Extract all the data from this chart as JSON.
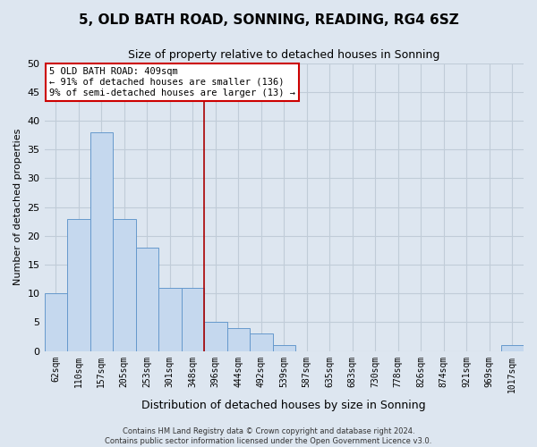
{
  "title": "5, OLD BATH ROAD, SONNING, READING, RG4 6SZ",
  "subtitle": "Size of property relative to detached houses in Sonning",
  "xlabel": "Distribution of detached houses by size in Sonning",
  "ylabel": "Number of detached properties",
  "bins": [
    "62sqm",
    "110sqm",
    "157sqm",
    "205sqm",
    "253sqm",
    "301sqm",
    "348sqm",
    "396sqm",
    "444sqm",
    "492sqm",
    "539sqm",
    "587sqm",
    "635sqm",
    "683sqm",
    "730sqm",
    "778sqm",
    "826sqm",
    "874sqm",
    "921sqm",
    "969sqm",
    "1017sqm"
  ],
  "values": [
    10,
    23,
    38,
    23,
    18,
    11,
    11,
    5,
    4,
    3,
    1,
    0,
    0,
    0,
    0,
    0,
    0,
    0,
    0,
    0,
    1
  ],
  "bar_color": "#c5d8ee",
  "bar_edge_color": "#6699cc",
  "vline_color": "#aa0000",
  "annotation_text": "5 OLD BATH ROAD: 409sqm\n← 91% of detached houses are smaller (136)\n9% of semi-detached houses are larger (13) →",
  "annotation_box_color": "#ffffff",
  "annotation_box_edge": "#cc0000",
  "background_color": "#dde6f0",
  "plot_bg_color": "#dde6f0",
  "ylim": [
    0,
    50
  ],
  "yticks": [
    0,
    5,
    10,
    15,
    20,
    25,
    30,
    35,
    40,
    45,
    50
  ],
  "footer": "Contains HM Land Registry data © Crown copyright and database right 2024.\nContains public sector information licensed under the Open Government Licence v3.0.",
  "title_fontsize": 11,
  "subtitle_fontsize": 9,
  "grid_color": "#c0ccd8",
  "vline_x_index": 7
}
